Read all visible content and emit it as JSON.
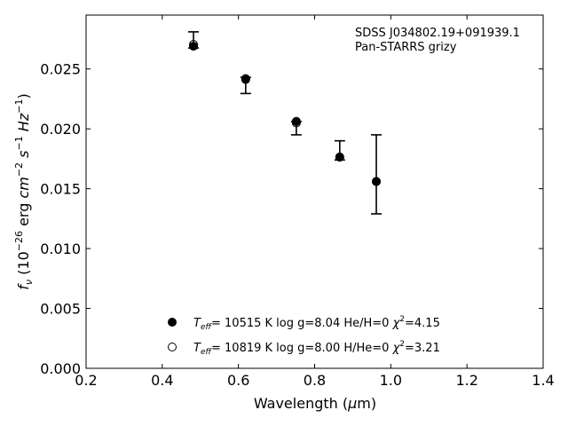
{
  "chart_data": {
    "type": "scatter",
    "annotation": [
      "SDSS J034802.19+091939.1",
      "Pan-STARRS grizy"
    ],
    "xlabel": "Wavelength (μm)",
    "ylabel": "f_ν (10^−26 erg cm^−2 s^−1 Hz^−1)",
    "xlim": [
      0.2,
      1.4
    ],
    "ylim": [
      0.0,
      0.0295
    ],
    "xticks": [
      "0.2",
      "0.4",
      "0.6",
      "0.8",
      "1.0",
      "1.2",
      "1.4"
    ],
    "yticks": [
      "0.000",
      "0.005",
      "0.010",
      "0.015",
      "0.020",
      "0.025"
    ],
    "observed": {
      "x": [
        0.482,
        0.619,
        0.752,
        0.866,
        0.962
      ],
      "y": [
        0.027,
        0.0242,
        0.0206,
        0.01765,
        0.0156
      ],
      "err_low": [
        0.00025,
        0.00125,
        0.0011,
        0.00025,
        0.0027
      ],
      "err_high": [
        0.0011,
        0.0001,
        0.0,
        0.00135,
        0.0039
      ]
    },
    "series": [
      {
        "name": "T_eff= 10515 K  log g=8.04  He/H=0  χ²=4.15",
        "marker": "filled-circle",
        "x": [
          0.482,
          0.619,
          0.752,
          0.866,
          0.962
        ],
        "y": [
          0.0269,
          0.02412,
          0.02062,
          0.01763,
          0.0156
        ]
      },
      {
        "name": "T_eff= 10819 K  log g=8.00  H/He=0  χ²=3.21",
        "marker": "open-circle",
        "x": [
          0.482,
          0.619,
          0.752,
          0.866,
          0.962
        ],
        "y": [
          0.02705,
          0.0242,
          0.0205,
          0.01765,
          0.0156
        ]
      }
    ],
    "legend_placement": "bottom-center",
    "grid": false
  }
}
